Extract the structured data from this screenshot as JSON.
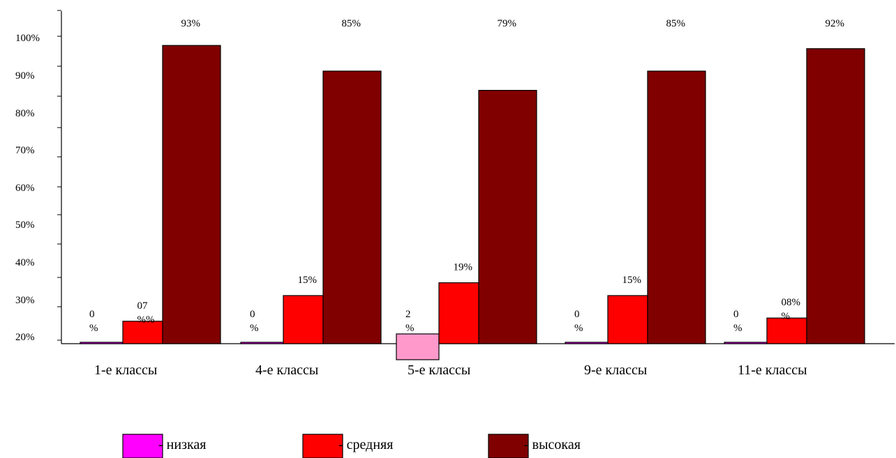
{
  "chart_data": {
    "type": "bar",
    "categories": [
      "1-е классы",
      "4-е классы",
      "5-е классы",
      "9-е классы",
      "11-е классы"
    ],
    "y_tick_labels": [
      "20%",
      "30%",
      "40%",
      "50%",
      "60%",
      "70%",
      "80%",
      "90%",
      "100%"
    ],
    "series": [
      {
        "name": "низкая",
        "values": [
          0,
          0,
          2,
          0,
          0
        ],
        "color": "#ff00ff",
        "labels": [
          [
            "0",
            "%"
          ],
          [
            "0",
            "%"
          ],
          [
            "2",
            "%"
          ],
          [
            "0",
            "%"
          ],
          [
            "0",
            "%"
          ]
        ]
      },
      {
        "name": "средняя",
        "values": [
          7,
          15,
          19,
          15,
          8
        ],
        "color": "#ff0000",
        "labels": [
          [
            "07",
            "%%"
          ],
          [
            "15%"
          ],
          [
            "19%"
          ],
          [
            "15%"
          ],
          [
            "08%",
            "%"
          ]
        ]
      },
      {
        "name": "высокая",
        "values": [
          93,
          85,
          79,
          85,
          92
        ],
        "color": "#800000",
        "labels": [
          [
            "93%"
          ],
          [
            "85%"
          ],
          [
            "79%"
          ],
          [
            "85%"
          ],
          [
            "92%"
          ]
        ]
      }
    ],
    "legend_prefix": "- ",
    "legend_position": "bottom",
    "grid": false
  }
}
